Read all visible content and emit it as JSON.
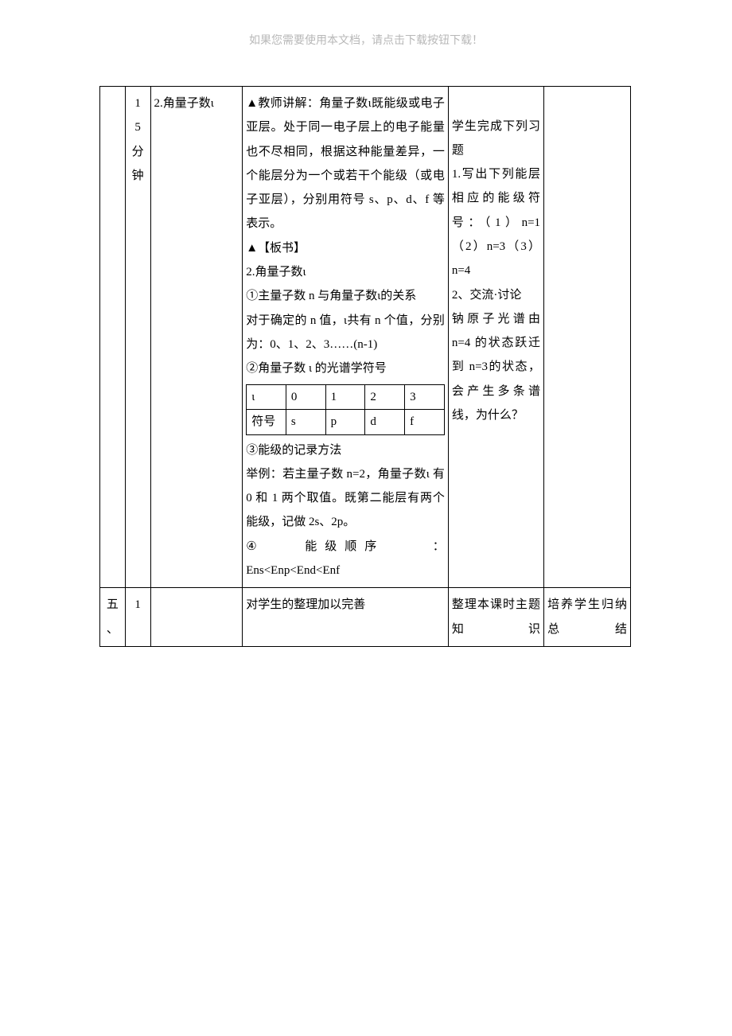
{
  "header_note": "如果您需要使用本文档，请点击下载按钮下载！",
  "row1": {
    "col2_lines": [
      "1",
      "5",
      "分",
      "钟"
    ],
    "col3": "2.角量子数ι",
    "col4": {
      "p1": "▲教师讲解：角量子数ι既能级或电子亚层。处于同一电子层上的电子能量也不尽相同，根据这种能量差异，一个能层分为一个或若干个能级（或电子亚层），分别用符号 s、p、d、f 等表示。",
      "p2": "▲【板书】",
      "p3": "2.角量子数ι",
      "p4": "①主量子数 n 与角量子数ι的关系",
      "p5": "对于确定的 n 值，ι共有 n 个值，分别为：0、1、2、3……(n-1)",
      "p6": "②角量子数 ι 的光谱学符号",
      "inner_table": {
        "r1": [
          "ι",
          "0",
          "1",
          "2",
          "3"
        ],
        "r2": [
          "符号",
          "s",
          "p",
          "d",
          "f"
        ]
      },
      "p7": "③能级的记录方法",
      "p8": "举例：若主量子数 n=2，角量子数ι 有 0 和 1 两个取值。既第二能层有两个能级，记做 2s、2p。",
      "p9_label": "④",
      "p9_mid": "能级顺序",
      "p9_tail": "：",
      "p10": "Ens<Enp<End<Enf"
    },
    "col5": {
      "p1": "学生完成下列习题",
      "p2": "1.写出下列能层相应的能级符号：（1）n=1（2）n=3（3）n=4",
      "p3": "2、交流·讨论",
      "p4": "钠原子光谱由 n=4 的状态跃迁到 n=3的状态，会产生多条谱线，为什么？"
    }
  },
  "row2": {
    "col1_lines": [
      "五",
      "、"
    ],
    "col2_lines": [
      "",
      "1"
    ],
    "col4": "对学生的整理加以完善",
    "col5": "整理本课时主题知识",
    "col6": "培养学生归纳总结"
  },
  "colors": {
    "text": "#000000",
    "border": "#000000",
    "header_note": "#b8b8b8",
    "background": "#ffffff"
  }
}
